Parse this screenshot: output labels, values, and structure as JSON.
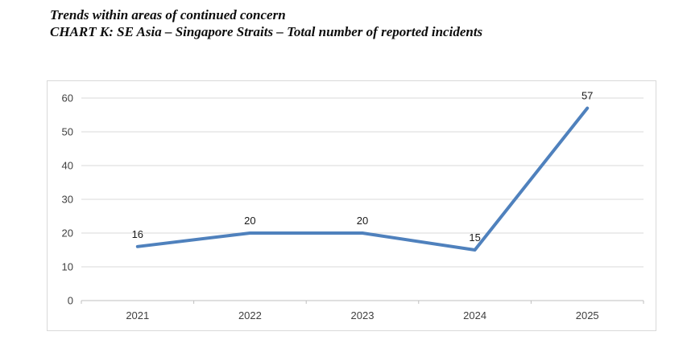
{
  "header": {
    "line1": "Trends within areas of continued concern",
    "line2": "CHART K: SE Asia – Singapore Straits – Total number of reported incidents"
  },
  "chart_data": {
    "type": "line",
    "title": "CHART K: SE Asia – Singapore Straits – Total number of reported incidents",
    "categories": [
      "2021",
      "2022",
      "2023",
      "2024",
      "2025"
    ],
    "values": [
      16,
      20,
      20,
      15,
      57
    ],
    "data_labels": [
      "16",
      "20",
      "20",
      "15",
      "57"
    ],
    "xlabel": "",
    "ylabel": "",
    "ylim": [
      0,
      60
    ],
    "yticks": [
      0,
      10,
      20,
      30,
      40,
      50,
      60
    ],
    "grid": "horizontal",
    "legend": "none"
  },
  "colors": {
    "line": "#4F81BD",
    "gridline": "#d9d9d9",
    "axis": "#bfbfbf",
    "tick_label": "#3f3f3f",
    "data_label": "#1a1a1a",
    "chart_border": "#d9d9d9",
    "background": "#ffffff"
  }
}
